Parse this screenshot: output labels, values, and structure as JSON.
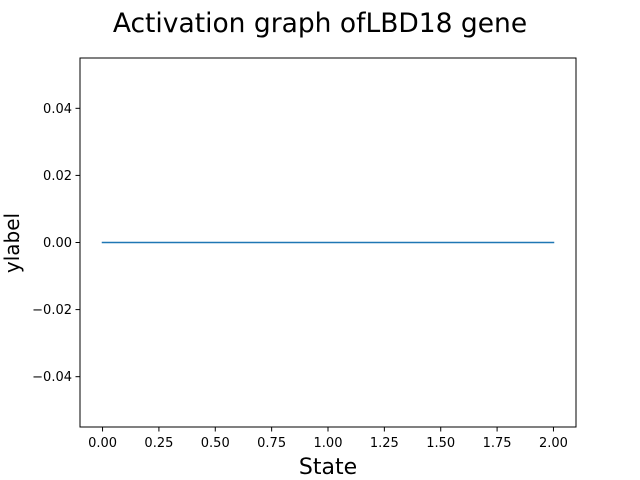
{
  "chart_data": {
    "type": "line",
    "title": "Activation graph ofLBD18 gene",
    "xlabel": "State",
    "ylabel": "ylabel",
    "x": [
      0,
      1,
      2
    ],
    "series": [
      {
        "values": [
          0,
          0,
          0
        ],
        "color": "#1f77b4"
      }
    ],
    "xlim": [
      -0.1,
      2.1
    ],
    "ylim": [
      -0.055,
      0.055
    ],
    "xticks": [
      0.0,
      0.25,
      0.5,
      0.75,
      1.0,
      1.25,
      1.5,
      1.75,
      2.0
    ],
    "xtick_labels": [
      "0.00",
      "0.25",
      "0.50",
      "0.75",
      "1.00",
      "1.25",
      "1.50",
      "1.75",
      "2.00"
    ],
    "yticks": [
      -0.04,
      -0.02,
      0.0,
      0.02,
      0.04
    ],
    "ytick_labels": [
      "−0.04",
      "−0.02",
      "0.00",
      "0.02",
      "0.04"
    ],
    "grid": false,
    "legend": "none"
  }
}
